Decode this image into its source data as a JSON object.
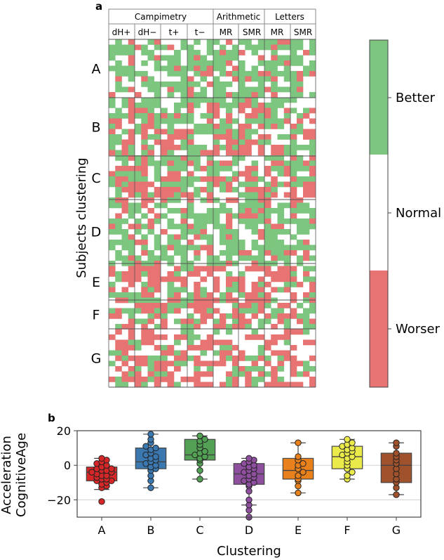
{
  "panel_a_label": "a",
  "panel_b_label": "b",
  "heatmap": {
    "group_headers": [
      "Campimetry",
      "Arithmetic",
      "Letters"
    ],
    "column_headers": [
      "dH+",
      "dH−",
      "t+",
      "t−",
      "MR",
      "SMR",
      "MR",
      "SMR"
    ],
    "row_labels": [
      "A",
      "B",
      "C",
      "D",
      "E",
      "F",
      "G"
    ],
    "ylabel": "Subjects clustering",
    "colorbar_labels": [
      "Better",
      "Normal",
      "Worser"
    ],
    "colors": {
      "better": "#7dc67f",
      "normal": "#ffffff",
      "worse": "#e87373"
    }
  },
  "chart_data": {
    "type": "box",
    "categories": [
      "A",
      "B",
      "C",
      "D",
      "E",
      "F",
      "G"
    ],
    "xlabel": "Clustering",
    "ylabel_line1": "Acceleration",
    "ylabel_line2": "CognitiveAge",
    "ylim": [
      -30,
      20
    ],
    "yticks": [
      "20",
      "0",
      "−20"
    ],
    "ytick_values": [
      20,
      0,
      -20
    ],
    "colors": [
      "#d62728",
      "#3b78b0",
      "#52a154",
      "#8f4f9f",
      "#e8801c",
      "#eaea4a",
      "#a0522d"
    ],
    "boxes": [
      {
        "q1": -9,
        "median": -4,
        "q3": -1,
        "whislo": -14,
        "whishi": 4,
        "points": [
          -21,
          -13,
          -12,
          -11,
          -10,
          -9,
          -9,
          -8,
          -8,
          -7,
          -6,
          -6,
          -5,
          -4,
          -4,
          -3,
          -3,
          -2,
          -2,
          -1,
          0,
          1,
          2,
          3,
          4
        ]
      },
      {
        "q1": -2,
        "median": 2,
        "q3": 10,
        "whislo": -13,
        "whishi": 18,
        "points": [
          -13,
          -9,
          -6,
          -3,
          -2,
          -1,
          0,
          1,
          2,
          3,
          4,
          5,
          6,
          7,
          9,
          10,
          11,
          13,
          15,
          18
        ]
      },
      {
        "q1": 3,
        "median": 6,
        "q3": 15,
        "whislo": -8,
        "whishi": 17,
        "points": [
          -8,
          -3,
          1,
          3,
          4,
          5,
          6,
          7,
          8,
          10,
          12,
          14,
          15,
          17
        ]
      },
      {
        "q1": -11,
        "median": -5,
        "q3": 1,
        "whislo": -23,
        "whishi": 4,
        "points": [
          -30,
          -26,
          -23,
          -20,
          -15,
          -12,
          -11,
          -10,
          -9,
          -8,
          -7,
          -6,
          -5,
          -4,
          -3,
          -2,
          -1,
          0,
          1,
          2,
          3,
          4
        ]
      },
      {
        "q1": -8,
        "median": -3,
        "q3": 4,
        "whislo": -16,
        "whishi": 13,
        "points": [
          -16,
          -12,
          -9,
          -8,
          -6,
          -4,
          -2,
          0,
          1,
          3,
          5,
          13
        ]
      },
      {
        "q1": -2,
        "median": 5,
        "q3": 11,
        "whislo": -8,
        "whishi": 15,
        "points": [
          -8,
          -6,
          -4,
          -2,
          0,
          2,
          4,
          5,
          6,
          7,
          8,
          9,
          10,
          11,
          12,
          13,
          15
        ]
      },
      {
        "q1": -10,
        "median": 0,
        "q3": 7,
        "whislo": -17,
        "whishi": 13,
        "points": [
          -17,
          -13,
          -10,
          -8,
          -5,
          -2,
          1,
          3,
          5,
          7,
          11,
          13
        ]
      }
    ]
  }
}
